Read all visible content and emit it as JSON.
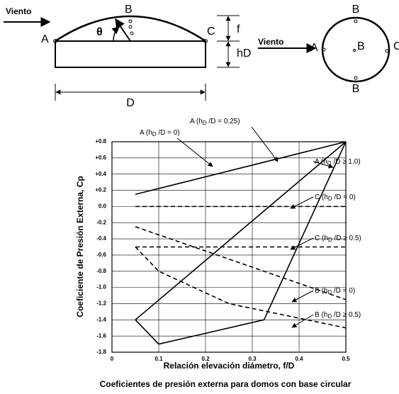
{
  "diagram": {
    "labels": [
      "Viento",
      "A",
      "B",
      "C",
      "θ",
      "f",
      "hD",
      "D",
      "Viento",
      "A",
      "B",
      "B",
      "B",
      "C"
    ]
  },
  "chart_data": {
    "type": "line",
    "caption": "Coeficientes de presión externa para domos con base circular",
    "xlabel": "Relación elevación diámetro, f/D",
    "ylabel": "Coeficiente de Presión Externa, Cp",
    "xlim": [
      0,
      0.5
    ],
    "xticks": [
      0,
      0.1,
      0.2,
      0.3,
      0.4,
      0.5
    ],
    "ylim": [
      -1.8,
      0.8
    ],
    "yticks": [
      {
        "value": 0.8,
        "label": "+0.8"
      },
      {
        "value": 0.6,
        "label": "+0.6"
      },
      {
        "value": 0.4,
        "label": "+0.4"
      },
      {
        "value": 0.2,
        "label": "+0.2"
      },
      {
        "value": 0,
        "label": "0.0"
      },
      -0.2,
      -0.4,
      -0.6,
      -0.8,
      {
        "value": -1,
        "label": "-1.0"
      },
      -1.2,
      -1.4,
      -1.6,
      -1.8
    ],
    "grid": true,
    "series": [
      {
        "name": "A (hD /D = 0)",
        "color": "#000000",
        "dashed": false,
        "x": [
          0.05,
          0.5
        ],
        "values": [
          0.15,
          0.8
        ]
      },
      {
        "name": "A (hD /D = 0.25)",
        "color": "#000000",
        "dashed": false,
        "x": [
          0.05,
          0.5
        ],
        "values": [
          -1.4,
          0.8
        ]
      },
      {
        "name": "A (hD /D ≥ 1.0)",
        "color": "#000000",
        "dashed": false,
        "x": [
          0.05,
          0.1,
          0.325,
          0.5
        ],
        "values": [
          -1.4,
          -1.7,
          -1.4,
          0.8
        ]
      },
      {
        "name": "C (hD /D = 0)",
        "color": "#000000",
        "dashed": true,
        "x": [
          0.05,
          0.5
        ],
        "values": [
          0,
          0
        ]
      },
      {
        "name": "C (hD /D ≥ 0.5)",
        "color": "#000000",
        "dashed": true,
        "x": [
          0.05,
          0.5
        ],
        "values": [
          -0.5,
          -0.5
        ]
      },
      {
        "name": "B (hD /D = 0)",
        "color": "#000000",
        "dashed": true,
        "x": [
          0.05,
          0.5
        ],
        "values": [
          -0.25,
          -1.15
        ]
      },
      {
        "name": "B (hD /D ≥ 0.5)",
        "color": "#000000",
        "dashed": true,
        "x": [
          0.05,
          0.1,
          0.25,
          0.5
        ],
        "values": [
          -0.5,
          -0.8,
          -1.2,
          -1.5
        ]
      }
    ]
  }
}
